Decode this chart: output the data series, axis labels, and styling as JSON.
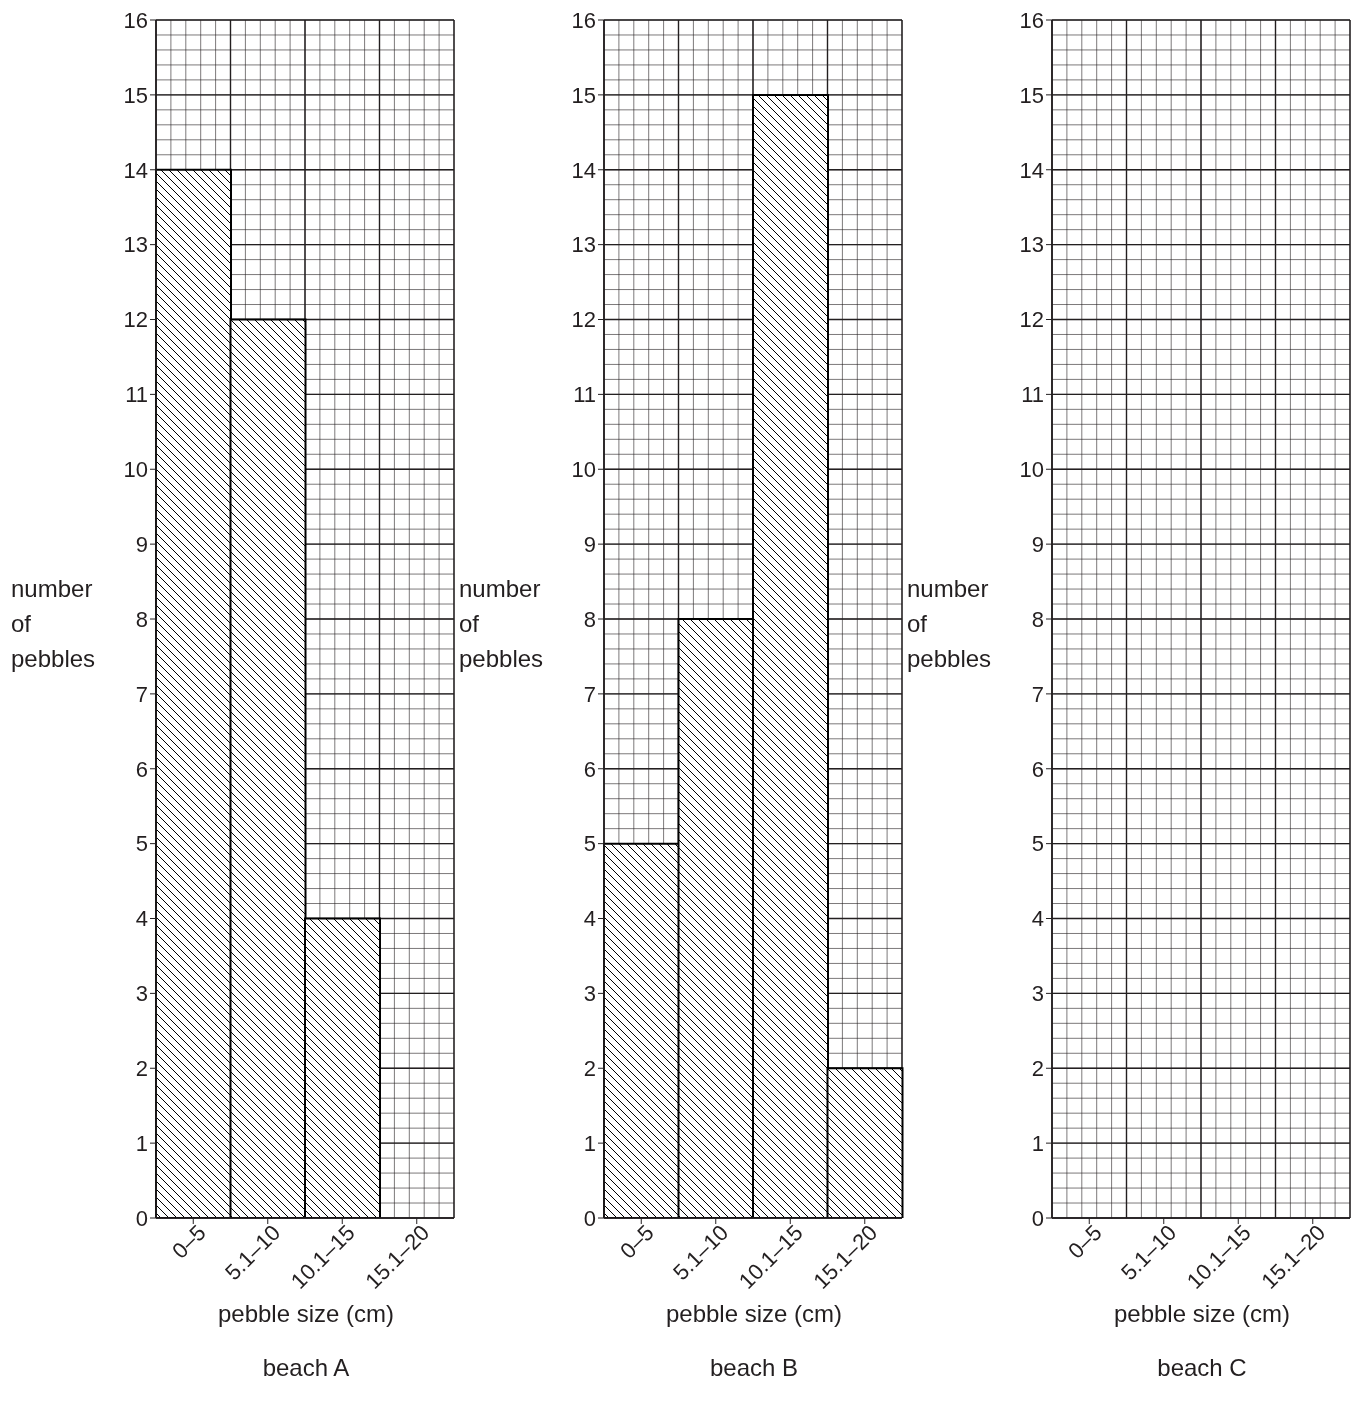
{
  "chart_data": [
    {
      "type": "bar",
      "title": "beach A",
      "xlabel": "pebble size (cm)",
      "ylabel": "number of pebbles",
      "categories": [
        "0–5",
        "5.1–10",
        "10.1–15",
        "15.1–20"
      ],
      "values": [
        14,
        12,
        4,
        0
      ],
      "color": "#000000",
      "ylim": [
        0,
        16
      ],
      "yticks": [
        0,
        1,
        2,
        3,
        4,
        5,
        6,
        7,
        8,
        9,
        10,
        11,
        12,
        13,
        14,
        15,
        16
      ],
      "grid": true
    },
    {
      "type": "bar",
      "title": "beach B",
      "xlabel": "pebble size (cm)",
      "ylabel": "number of pebbles",
      "categories": [
        "0–5",
        "5.1–10",
        "10.1–15",
        "15.1–20"
      ],
      "values": [
        5,
        8,
        15,
        2
      ],
      "color": "#000000",
      "ylim": [
        0,
        16
      ],
      "yticks": [
        0,
        1,
        2,
        3,
        4,
        5,
        6,
        7,
        8,
        9,
        10,
        11,
        12,
        13,
        14,
        15,
        16
      ],
      "grid": true
    },
    {
      "type": "bar",
      "title": "beach C",
      "xlabel": "pebble size (cm)",
      "ylabel": "number of pebbles",
      "categories": [
        "0–5",
        "5.1–10",
        "10.1–15",
        "15.1–20"
      ],
      "values": [
        null,
        null,
        null,
        null
      ],
      "color": "#000000",
      "ylim": [
        0,
        16
      ],
      "yticks": [
        0,
        1,
        2,
        3,
        4,
        5,
        6,
        7,
        8,
        9,
        10,
        11,
        12,
        13,
        14,
        15,
        16
      ],
      "grid": true
    }
  ]
}
